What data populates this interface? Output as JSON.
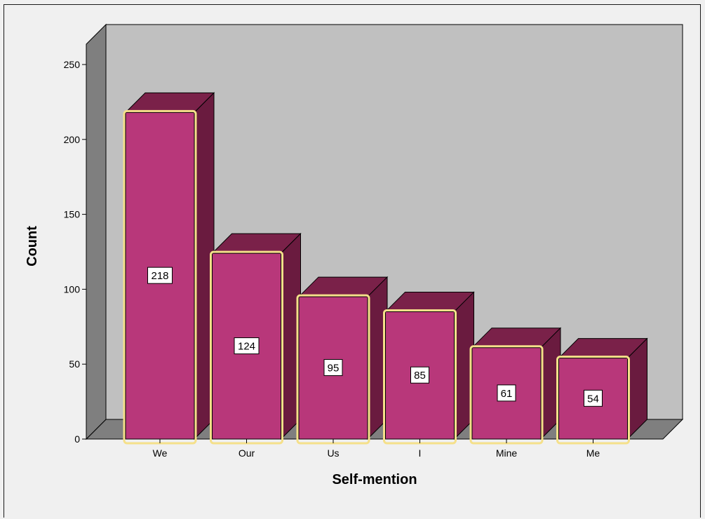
{
  "chart_data": {
    "type": "bar",
    "style": "3d",
    "categories": [
      "We",
      "Our",
      "Us",
      "I",
      "Mine",
      "Me"
    ],
    "values": [
      218,
      124,
      95,
      85,
      61,
      54
    ],
    "data_labels": [
      "218",
      "124",
      "95",
      "85",
      "61",
      "54"
    ],
    "title": "",
    "xlabel": "Self-mention",
    "ylabel": "Count",
    "ylim": [
      0,
      250
    ],
    "yticks": [
      "0",
      "50",
      "100",
      "150",
      "200",
      "250"
    ],
    "grid": false,
    "legend": "none",
    "colors": {
      "bar_front": "#b8377a",
      "bar_top": "#7a2149",
      "bar_side": "#6a1b3f",
      "bar_highlight": "#f5e08a",
      "wall_back": "#c0c0c0",
      "wall_side": "#7f7f7f",
      "floor": "#7f7f7f",
      "background": "#f0f0f0"
    }
  }
}
